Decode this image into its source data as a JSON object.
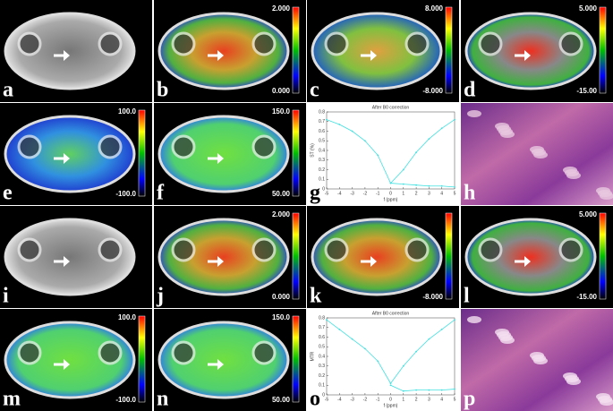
{
  "panels": [
    {
      "letter": "a"
    },
    {
      "letter": "b",
      "colorbar": {
        "max": "2.000",
        "min": "0.000"
      }
    },
    {
      "letter": "c",
      "colorbar": {
        "max": "8.000",
        "min": "-8.000"
      }
    },
    {
      "letter": "d",
      "colorbar": {
        "max": "5.000",
        "min": "-15.00"
      }
    },
    {
      "letter": "e",
      "colorbar": {
        "max": "100.0",
        "min": "-100.0"
      }
    },
    {
      "letter": "f",
      "colorbar": {
        "max": "150.0",
        "min": "50.00"
      }
    },
    {
      "letter": "g"
    },
    {
      "letter": "h"
    },
    {
      "letter": "i"
    },
    {
      "letter": "j",
      "colorbar": {
        "max": "2.000",
        "min": "0.000"
      }
    },
    {
      "letter": "k",
      "colorbar": {
        "min": "-8.000"
      }
    },
    {
      "letter": "l",
      "colorbar": {
        "max": "5.000",
        "min": "-15.00"
      }
    },
    {
      "letter": "m",
      "colorbar": {
        "max": "100.0",
        "min": "-100.0"
      }
    },
    {
      "letter": "n",
      "colorbar": {
        "max": "150.0",
        "min": "50.00"
      }
    },
    {
      "letter": "o"
    },
    {
      "letter": "p"
    }
  ],
  "plots": [
    {
      "panel": "g",
      "type": "line",
      "title": "After B0 correction",
      "xlabel": "f (ppm)",
      "ylabel": "ST (%)",
      "x": [
        -5,
        -4,
        -3,
        -2,
        -1,
        0,
        1,
        2,
        3,
        4,
        5
      ],
      "series": [
        {
          "color": "#40e0e0",
          "values": [
            0.72,
            0.67,
            0.6,
            0.5,
            0.35,
            0.06,
            0.2,
            0.38,
            0.52,
            0.63,
            0.72
          ]
        },
        {
          "color": "#40e0e0",
          "values": [
            null,
            null,
            null,
            null,
            null,
            0.06,
            0.05,
            0.04,
            0.03,
            0.03,
            0.02
          ]
        }
      ],
      "xlim": [
        -5,
        5
      ],
      "xticks": [
        -5,
        -4,
        -3,
        -2,
        -1,
        0,
        1,
        2,
        3,
        4,
        5
      ],
      "ylim": [
        0,
        0.8
      ],
      "yticks": [
        0,
        0.1,
        0.2,
        0.3,
        0.4,
        0.5,
        0.6,
        0.7,
        0.8
      ]
    },
    {
      "panel": "o",
      "type": "line",
      "title": "After B0 correction",
      "xlabel": "f (ppm)",
      "ylabel": "MTR",
      "x": [
        -5,
        -4,
        -3,
        -2,
        -1,
        0,
        1,
        2,
        3,
        4,
        5
      ],
      "series": [
        {
          "color": "#40e0e0",
          "values": [
            0.78,
            0.68,
            0.58,
            0.48,
            0.35,
            0.12,
            0.3,
            0.45,
            0.58,
            0.68,
            0.78
          ]
        },
        {
          "color": "#40e0e0",
          "values": [
            null,
            null,
            null,
            null,
            null,
            0.1,
            0.04,
            0.05,
            0.05,
            0.05,
            0.06
          ]
        }
      ],
      "xlim": [
        -5,
        5
      ],
      "xticks": [
        -5,
        -4,
        -3,
        -2,
        -1,
        0,
        1,
        2,
        3,
        4,
        5
      ],
      "ylim": [
        0,
        0.8
      ],
      "yticks": [
        0,
        0.1,
        0.2,
        0.3,
        0.4,
        0.5,
        0.6,
        0.7,
        0.8
      ]
    }
  ]
}
